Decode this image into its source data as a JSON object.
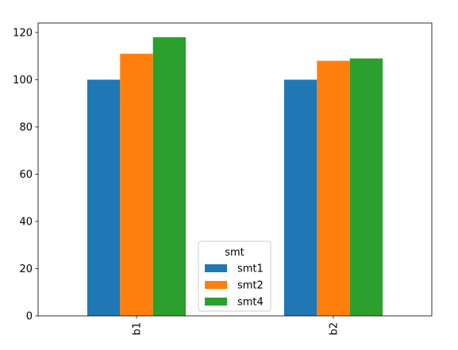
{
  "chart_data": {
    "type": "bar",
    "title": "",
    "xlabel": "",
    "ylabel": "",
    "categories": [
      "b1",
      "b2"
    ],
    "series": [
      {
        "name": "smt1",
        "values": [
          100,
          100
        ],
        "color": "#1f77b4"
      },
      {
        "name": "smt2",
        "values": [
          111,
          108
        ],
        "color": "#ff7f0e"
      },
      {
        "name": "smt4",
        "values": [
          118,
          109
        ],
        "color": "#2ca02c"
      }
    ],
    "ylim": [
      0,
      124
    ],
    "yticks": [
      0,
      20,
      40,
      60,
      80,
      100,
      120
    ],
    "legend": {
      "title": "smt",
      "placement": "lower center"
    },
    "grid": false
  }
}
